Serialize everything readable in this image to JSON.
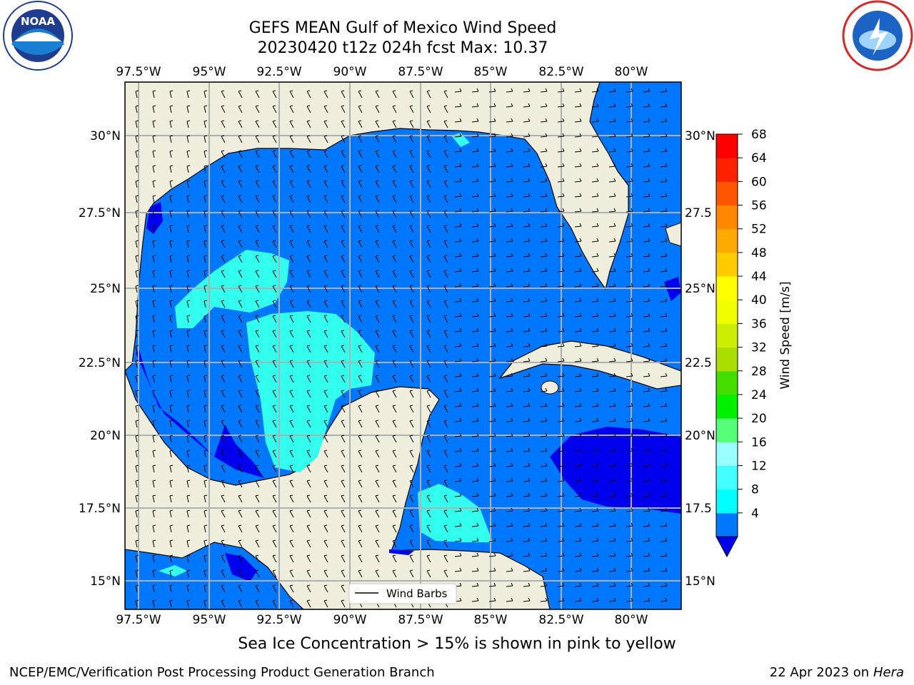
{
  "title": {
    "line1": "GEFS MEAN Gulf of Mexico Wind Speed",
    "line2": "20230420 t12z 024h fcst   Max: 10.37"
  },
  "caption": "Sea Ice Concentration > 15% is shown in pink to yellow",
  "footer": {
    "left": "NCEP/EMC/Verification Post Processing Product Generation Branch",
    "date": "22 Apr 2023 on ",
    "machine": "Hera"
  },
  "logos": {
    "left": "NOAA",
    "right": "NATIONAL WEATHER SERVICE"
  },
  "map": {
    "lon_labels": [
      "97.5°W",
      "95°W",
      "92.5°W",
      "90°W",
      "87.5°W",
      "85°W",
      "82.5°W",
      "80°W"
    ],
    "lat_labels_left": [
      "30°N",
      "27.5°N",
      "25°N",
      "22.5°N",
      "20°N",
      "17.5°N",
      "15°N"
    ],
    "lat_labels_right": [
      "30°N",
      "27.5",
      "25°N",
      "22.5",
      "20°N",
      "17.5",
      "15°N"
    ],
    "legend": "Wind Barbs",
    "colors": {
      "land": "#efeedd",
      "ocean_4_8": "#0077ff",
      "ocean_8_12": "#00ffff",
      "ocean_below_4": "#0000ee",
      "light_cyan": "#33ffee"
    }
  },
  "colorbar": {
    "label": "Wind Speed [m/s]",
    "ticks": [
      "68",
      "64",
      "60",
      "56",
      "52",
      "48",
      "44",
      "40",
      "36",
      "32",
      "28",
      "24",
      "20",
      "16",
      "12",
      "8",
      "4"
    ],
    "colors": [
      "#0077ff",
      "#00ffff",
      "#44ffff",
      "#99ffff",
      "#55ff77",
      "#00ee00",
      "#44dd00",
      "#aadd00",
      "#ccee00",
      "#eeff00",
      "#ffff00",
      "#ffcc00",
      "#ffaa00",
      "#ff8800",
      "#ff5500",
      "#ff2200",
      "#ff0000"
    ],
    "extend_color": "#0000ee"
  }
}
